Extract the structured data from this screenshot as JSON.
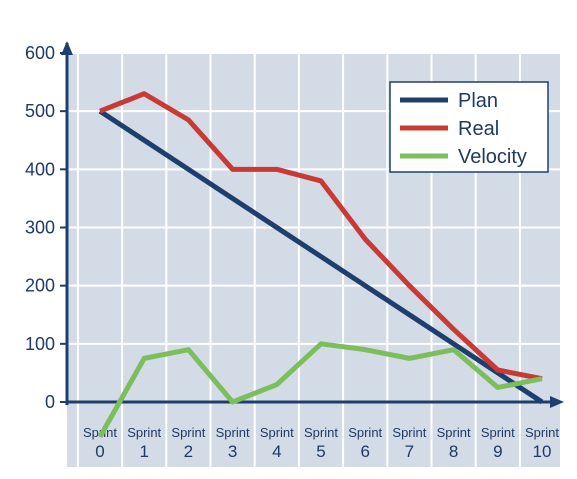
{
  "chart_data": {
    "type": "line",
    "title": "",
    "xlabel": "",
    "ylabel": "",
    "categories": [
      {
        "word": "Sprint",
        "num": "0"
      },
      {
        "word": "Sprint",
        "num": "1"
      },
      {
        "word": "Sprint",
        "num": "2"
      },
      {
        "word": "Sprint",
        "num": "3"
      },
      {
        "word": "Sprint",
        "num": "4"
      },
      {
        "word": "Sprint",
        "num": "5"
      },
      {
        "word": "Sprint",
        "num": "6"
      },
      {
        "word": "Sprint",
        "num": "7"
      },
      {
        "word": "Sprint",
        "num": "8"
      },
      {
        "word": "Sprint",
        "num": "9"
      },
      {
        "word": "Sprint",
        "num": "10"
      }
    ],
    "ylim": [
      0,
      600
    ],
    "yticks": [
      "0",
      "100",
      "200",
      "300",
      "400",
      "500",
      "600"
    ],
    "grid": true,
    "legend_position": "top-right",
    "series": [
      {
        "name": "Plan",
        "color": "#1e3f6e",
        "values": [
          500,
          450,
          400,
          350,
          300,
          250,
          200,
          150,
          100,
          50,
          0
        ]
      },
      {
        "name": "Real",
        "color": "#c93a35",
        "values": [
          500,
          530,
          485,
          400,
          400,
          380,
          280,
          200,
          125,
          55,
          40
        ]
      },
      {
        "name": "Velocity",
        "color": "#7cbe5c",
        "values": [
          -60,
          75,
          90,
          0,
          30,
          100,
          90,
          75,
          90,
          25,
          40
        ]
      }
    ],
    "colors": {
      "background_band": "#d3dbe6",
      "grid": "#ffffff",
      "axis": "#1e3f6e",
      "text": "#1f3a63"
    }
  }
}
